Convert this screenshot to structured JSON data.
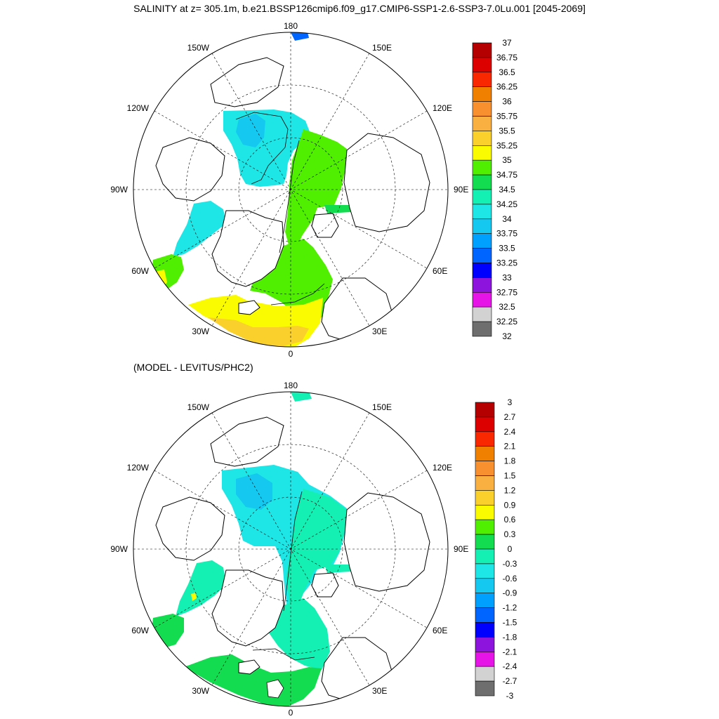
{
  "title": "SALINITY at z= 305.1m, b.e21.BSSP126cmip6.f09_g17.CMIP6-SSP1-2.6-SSP3-7.0Lu.001 [2045-2069]",
  "subtitle": "(MODEL - LEVITUS/PHC2)",
  "longitude_labels": {
    "top": "180",
    "bottom": "0",
    "left": "90W",
    "right": "90E",
    "upper_left": "150W",
    "upper_right": "150E",
    "mid_upper_left": "120W",
    "mid_upper_right": "120E",
    "mid_lower_left": "60W",
    "mid_lower_right": "60E",
    "lower_left": "30W",
    "lower_right": "30E"
  },
  "colors": {
    "land_outline": "#000000",
    "grid": "#000000",
    "map_background": "#ffffff"
  },
  "panels": [
    {
      "id": "salinity",
      "colorbar": {
        "labels": [
          "37",
          "36.75",
          "36.5",
          "36.25",
          "36",
          "35.75",
          "35.5",
          "35.25",
          "35",
          "34.75",
          "34.5",
          "34.25",
          "34",
          "33.75",
          "33.5",
          "33.25",
          "33",
          "32.75",
          "32.5",
          "32.25",
          "32"
        ],
        "colors": [
          "#b40000",
          "#dc0000",
          "#fa2800",
          "#f08000",
          "#f89030",
          "#fab040",
          "#fad02c",
          "#fafa00",
          "#50ee00",
          "#14dc50",
          "#14f0b4",
          "#1ee6e6",
          "#14c8f0",
          "#00a0ff",
          "#0064ff",
          "#0000ff",
          "#8c14dc",
          "#e614e6",
          "#d2d2d2",
          "#6e6e6e"
        ]
      }
    },
    {
      "id": "difference",
      "colorbar": {
        "labels": [
          "3",
          "2.7",
          "2.4",
          "2.1",
          "1.8",
          "1.5",
          "1.2",
          "0.9",
          "0.6",
          "0.3",
          "0",
          "-0.3",
          "-0.6",
          "-0.9",
          "-1.2",
          "-1.5",
          "-1.8",
          "-2.1",
          "-2.4",
          "-2.7",
          "-3"
        ],
        "colors": [
          "#b40000",
          "#dc0000",
          "#fa2800",
          "#f08000",
          "#f89030",
          "#fab040",
          "#fad02c",
          "#fafa00",
          "#50ee00",
          "#14dc50",
          "#14f0b4",
          "#1ee6e6",
          "#14c8f0",
          "#00a0ff",
          "#0064ff",
          "#0000ff",
          "#8c14dc",
          "#e614e6",
          "#d2d2d2",
          "#6e6e6e"
        ]
      }
    }
  ]
}
